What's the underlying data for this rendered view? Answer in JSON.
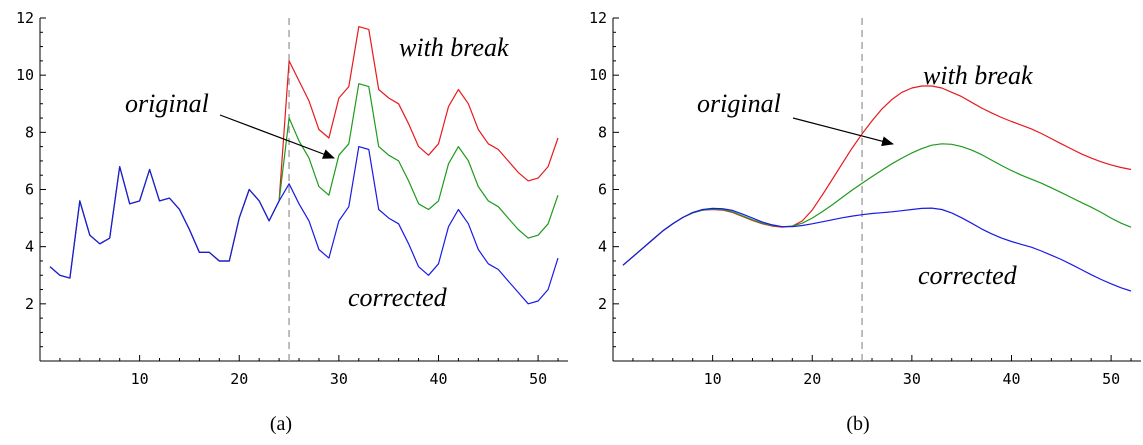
{
  "chart_data": [
    {
      "type": "line",
      "caption": "(a)",
      "xlim": [
        0,
        53
      ],
      "ylim": [
        0,
        12
      ],
      "xticks": [
        10,
        20,
        30,
        40,
        50
      ],
      "yticks": [
        2,
        4,
        6,
        8,
        10,
        12
      ],
      "break_at": 25,
      "x": [
        1,
        2,
        3,
        4,
        5,
        6,
        7,
        8,
        9,
        10,
        11,
        12,
        13,
        14,
        15,
        16,
        17,
        18,
        19,
        20,
        21,
        22,
        23,
        24,
        25,
        26,
        27,
        28,
        29,
        30,
        31,
        32,
        33,
        34,
        35,
        36,
        37,
        38,
        39,
        40,
        41,
        42,
        43,
        44,
        45,
        46,
        47,
        48,
        49,
        50,
        51,
        52
      ],
      "series": [
        {
          "key": "with_break",
          "color": "#e8191d",
          "values": [
            3.3,
            3.0,
            2.9,
            5.6,
            4.4,
            4.1,
            4.3,
            6.8,
            5.5,
            5.6,
            6.7,
            5.6,
            5.7,
            5.3,
            4.6,
            3.8,
            3.8,
            3.5,
            3.5,
            5.0,
            6.0,
            5.6,
            4.9,
            5.6,
            10.5,
            9.8,
            9.1,
            8.1,
            7.8,
            9.2,
            9.6,
            11.7,
            11.6,
            9.5,
            9.2,
            9.0,
            8.3,
            7.5,
            7.2,
            7.6,
            8.9,
            9.5,
            9.0,
            8.1,
            7.6,
            7.4,
            7.0,
            6.6,
            6.3,
            6.4,
            6.8,
            7.8
          ]
        },
        {
          "key": "original",
          "color": "#1f9a1f",
          "values": [
            3.3,
            3.0,
            2.9,
            5.6,
            4.4,
            4.1,
            4.3,
            6.8,
            5.5,
            5.6,
            6.7,
            5.6,
            5.7,
            5.3,
            4.6,
            3.8,
            3.8,
            3.5,
            3.5,
            5.0,
            6.0,
            5.6,
            4.9,
            5.6,
            8.5,
            7.7,
            7.1,
            6.1,
            5.8,
            7.2,
            7.6,
            9.7,
            9.6,
            7.5,
            7.2,
            7.0,
            6.3,
            5.5,
            5.3,
            5.6,
            6.9,
            7.5,
            7.0,
            6.1,
            5.6,
            5.4,
            5.0,
            4.6,
            4.3,
            4.4,
            4.8,
            5.8
          ]
        },
        {
          "key": "corrected",
          "color": "#1a1ae8",
          "values": [
            3.3,
            3.0,
            2.9,
            5.6,
            4.4,
            4.1,
            4.3,
            6.8,
            5.5,
            5.6,
            6.7,
            5.6,
            5.7,
            5.3,
            4.6,
            3.8,
            3.8,
            3.5,
            3.5,
            5.0,
            6.0,
            5.6,
            4.9,
            5.6,
            6.2,
            5.5,
            4.9,
            3.9,
            3.6,
            4.9,
            5.4,
            7.5,
            7.4,
            5.3,
            5.0,
            4.8,
            4.1,
            3.3,
            3.0,
            3.4,
            4.7,
            5.3,
            4.8,
            3.9,
            3.4,
            3.2,
            2.8,
            2.4,
            2.0,
            2.1,
            2.5,
            3.6
          ]
        }
      ],
      "annotations": {
        "with_break": "with break",
        "original": "original",
        "corrected": "corrected"
      }
    },
    {
      "type": "line",
      "caption": "(b)",
      "xlim": [
        0,
        53
      ],
      "ylim": [
        0,
        12
      ],
      "xticks": [
        10,
        20,
        30,
        40,
        50
      ],
      "yticks": [
        2,
        4,
        6,
        8,
        10,
        12
      ],
      "break_at": 25,
      "x": [
        1,
        2,
        3,
        4,
        5,
        6,
        7,
        8,
        9,
        10,
        11,
        12,
        13,
        14,
        15,
        16,
        17,
        18,
        19,
        20,
        21,
        22,
        23,
        24,
        25,
        26,
        27,
        28,
        29,
        30,
        31,
        32,
        33,
        34,
        35,
        36,
        37,
        38,
        39,
        40,
        41,
        42,
        43,
        44,
        45,
        46,
        47,
        48,
        49,
        50,
        51,
        52
      ],
      "series": [
        {
          "key": "with_break",
          "color": "#e8191d",
          "values": [
            3.35,
            3.65,
            3.95,
            4.25,
            4.55,
            4.8,
            5.02,
            5.18,
            5.28,
            5.3,
            5.28,
            5.2,
            5.06,
            4.92,
            4.8,
            4.72,
            4.68,
            4.72,
            4.9,
            5.28,
            5.8,
            6.35,
            6.9,
            7.45,
            7.95,
            8.4,
            8.82,
            9.15,
            9.4,
            9.55,
            9.62,
            9.62,
            9.55,
            9.4,
            9.25,
            9.05,
            8.85,
            8.68,
            8.52,
            8.38,
            8.25,
            8.12,
            7.96,
            7.78,
            7.6,
            7.42,
            7.25,
            7.1,
            6.97,
            6.86,
            6.77,
            6.7
          ]
        },
        {
          "key": "original",
          "color": "#1f9a1f",
          "values": [
            3.35,
            3.65,
            3.95,
            4.25,
            4.55,
            4.8,
            5.02,
            5.18,
            5.28,
            5.31,
            5.3,
            5.22,
            5.08,
            4.94,
            4.82,
            4.74,
            4.7,
            4.72,
            4.82,
            5.0,
            5.22,
            5.46,
            5.72,
            5.98,
            6.22,
            6.45,
            6.68,
            6.9,
            7.1,
            7.28,
            7.43,
            7.55,
            7.6,
            7.58,
            7.5,
            7.38,
            7.22,
            7.03,
            6.84,
            6.66,
            6.5,
            6.36,
            6.22,
            6.06,
            5.89,
            5.72,
            5.55,
            5.38,
            5.2,
            5.0,
            4.82,
            4.68
          ]
        },
        {
          "key": "corrected",
          "color": "#1a1ae8",
          "values": [
            3.35,
            3.65,
            3.95,
            4.25,
            4.55,
            4.8,
            5.02,
            5.2,
            5.3,
            5.34,
            5.33,
            5.27,
            5.14,
            5.0,
            4.86,
            4.76,
            4.7,
            4.7,
            4.74,
            4.8,
            4.87,
            4.94,
            5.01,
            5.07,
            5.12,
            5.16,
            5.19,
            5.22,
            5.26,
            5.3,
            5.34,
            5.35,
            5.3,
            5.18,
            5.01,
            4.82,
            4.62,
            4.45,
            4.3,
            4.18,
            4.08,
            3.98,
            3.85,
            3.7,
            3.55,
            3.38,
            3.2,
            3.02,
            2.85,
            2.7,
            2.56,
            2.45
          ]
        }
      ],
      "annotations": {
        "with_break": "with break",
        "original": "original",
        "corrected": "corrected"
      }
    }
  ]
}
